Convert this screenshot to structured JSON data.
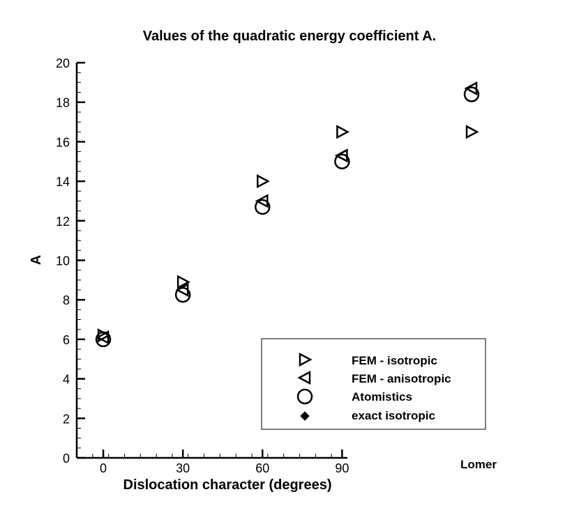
{
  "chart_data": {
    "type": "scatter",
    "title": "Values of the quadratic energy coefficient A.",
    "xlabel": "Dislocation character (degrees)",
    "ylabel": "A",
    "xlim": [
      -10,
      92
    ],
    "ylim": [
      0,
      20
    ],
    "x_ticks": [
      0,
      30,
      60,
      90
    ],
    "x_tick_labels": [
      "0",
      "30",
      "60",
      "90"
    ],
    "y_ticks": [
      0,
      2,
      4,
      6,
      8,
      10,
      12,
      14,
      16,
      18,
      20
    ],
    "y_tick_labels": [
      "0",
      "2",
      "4",
      "6",
      "8",
      "10",
      "12",
      "14",
      "16",
      "18",
      "20"
    ],
    "extra_category_label": "Lomer",
    "grid": false,
    "legend_position": "bottom-right",
    "series": [
      {
        "name": "FEM - isotropic",
        "marker": "triangle-right",
        "points": [
          {
            "x": 0,
            "y": 6.2
          },
          {
            "x": 30,
            "y": 8.9
          },
          {
            "x": 60,
            "y": 14.0
          },
          {
            "x": 90,
            "y": 16.5
          },
          {
            "x": "Lomer",
            "y": 16.5
          }
        ]
      },
      {
        "name": "FEM - anisotropic",
        "marker": "triangle-left",
        "points": [
          {
            "x": 0,
            "y": 6.1
          },
          {
            "x": 30,
            "y": 8.5
          },
          {
            "x": 60,
            "y": 13.0
          },
          {
            "x": 90,
            "y": 15.3
          },
          {
            "x": "Lomer",
            "y": 18.7
          }
        ]
      },
      {
        "name": "Atomistics",
        "marker": "circle",
        "points": [
          {
            "x": 0,
            "y": 6.0
          },
          {
            "x": 30,
            "y": 8.25
          },
          {
            "x": 60,
            "y": 12.7
          },
          {
            "x": 90,
            "y": 15.0
          },
          {
            "x": "Lomer",
            "y": 18.4
          }
        ]
      },
      {
        "name": "exact isotropic",
        "marker": "diamond",
        "points": []
      }
    ]
  }
}
